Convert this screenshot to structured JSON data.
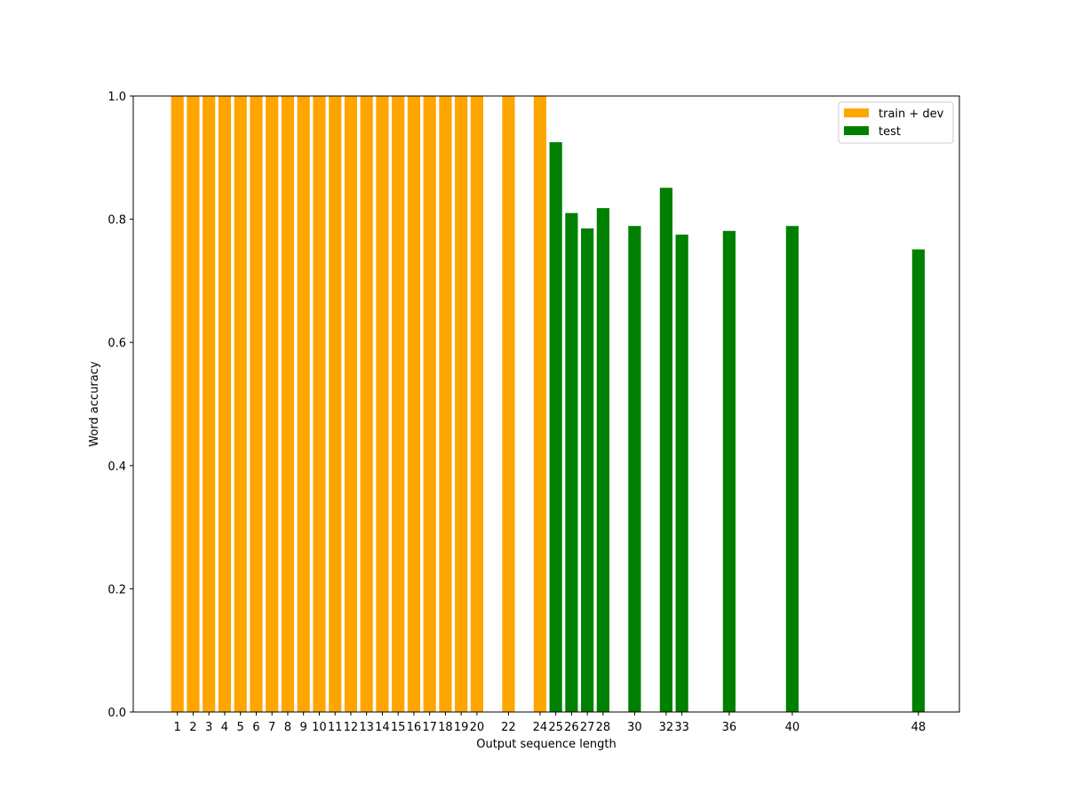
{
  "chart_data": {
    "type": "bar",
    "xlabel": "Output sequence length",
    "ylabel": "Word accuracy",
    "xlim": [
      -1.8,
      50.6
    ],
    "ylim": [
      0,
      1.0
    ],
    "x_ticks": [
      1,
      2,
      3,
      4,
      5,
      6,
      7,
      8,
      9,
      10,
      11,
      12,
      13,
      14,
      15,
      16,
      17,
      18,
      19,
      20,
      22,
      24,
      25,
      26,
      27,
      28,
      30,
      32,
      33,
      36,
      40,
      48
    ],
    "y_ticks": [
      0.0,
      0.2,
      0.4,
      0.6,
      0.8,
      1.0
    ],
    "y_tick_labels": [
      "0.0",
      "0.2",
      "0.4",
      "0.6",
      "0.8",
      "1.0"
    ],
    "grid": false,
    "legend_position": "top-right",
    "series": [
      {
        "name": "train + dev",
        "color": "#ffa500",
        "x": [
          1,
          2,
          3,
          4,
          5,
          6,
          7,
          8,
          9,
          10,
          11,
          12,
          13,
          14,
          15,
          16,
          17,
          18,
          19,
          20,
          22,
          24
        ],
        "values": [
          1.0,
          1.0,
          1.0,
          1.0,
          1.0,
          1.0,
          1.0,
          1.0,
          1.0,
          1.0,
          1.0,
          1.0,
          1.0,
          1.0,
          1.0,
          1.0,
          1.0,
          1.0,
          1.0,
          1.0,
          1.0,
          1.0
        ]
      },
      {
        "name": "test",
        "color": "#008000",
        "x": [
          25,
          26,
          27,
          28,
          30,
          32,
          33,
          36,
          40,
          48
        ],
        "values": [
          0.925,
          0.81,
          0.785,
          0.818,
          0.789,
          0.851,
          0.775,
          0.781,
          0.789,
          0.751
        ]
      }
    ]
  }
}
